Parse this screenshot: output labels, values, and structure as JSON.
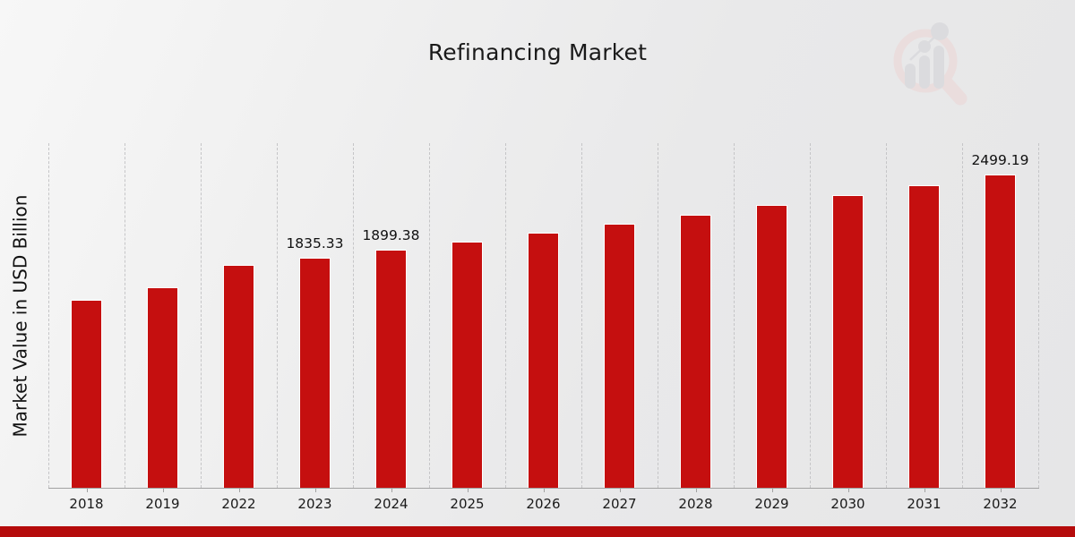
{
  "page": {
    "title": "Refinancing Market",
    "y_axis_label": "Market Value in USD Billion"
  },
  "chart_data": {
    "type": "bar",
    "title": "Refinancing Market",
    "xlabel": "",
    "ylabel": "Market Value in USD Billion",
    "ylim": [
      0,
      2750
    ],
    "grid": "vertical dashed gridlines between categories",
    "legend": "none",
    "bar_color": "#c50f0f",
    "bar_edge_color": "#ffffff",
    "categories": [
      "2018",
      "2019",
      "2022",
      "2023",
      "2024",
      "2025",
      "2026",
      "2027",
      "2028",
      "2029",
      "2030",
      "2031",
      "2032"
    ],
    "values": [
      1500,
      1600,
      1780,
      1835.33,
      1899.38,
      1965.7,
      2034.3,
      2105.3,
      2178.7,
      2254.8,
      2333.5,
      2414.9,
      2499.19
    ],
    "bar_labels": [
      "",
      "",
      "",
      "1835.33",
      "1899.38",
      "",
      "",
      "",
      "",
      "",
      "",
      "",
      "2499.19"
    ]
  },
  "branding": {
    "watermark_icon": "magnifier-bar-chart-logo",
    "ring_color": "#ecd5d5",
    "glyph_color": "#d2d2d6"
  },
  "footer": {
    "accent_bar_color": "#b50b0b"
  }
}
